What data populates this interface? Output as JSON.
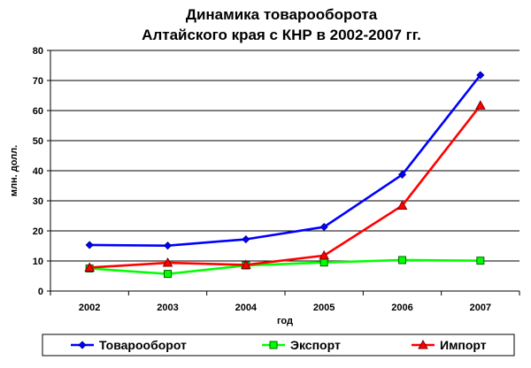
{
  "chart_data": {
    "type": "line",
    "title": [
      "Динамика товарооборота",
      "Алтайского края с КНР в 2002-2007 гг."
    ],
    "xlabel": "год",
    "ylabel": "млн. долл.",
    "categories": [
      "2002",
      "2003",
      "2004",
      "2005",
      "2006",
      "2007"
    ],
    "ylim": [
      0,
      80
    ],
    "yticks": [
      0,
      10,
      20,
      30,
      40,
      50,
      60,
      70,
      80
    ],
    "grid": true,
    "legend_position": "bottom",
    "series": [
      {
        "name": "Товарооборот",
        "color": "#0000ff",
        "marker": "diamond",
        "values": [
          15.3,
          15.1,
          17.2,
          21.3,
          38.7,
          71.8
        ]
      },
      {
        "name": "Экспорт",
        "color": "#00ff00",
        "marker": "square",
        "values": [
          7.5,
          5.7,
          8.5,
          9.5,
          10.3,
          10.1
        ]
      },
      {
        "name": "Импорт",
        "color": "#ff0000",
        "marker": "triangle",
        "values": [
          7.8,
          9.4,
          8.7,
          11.8,
          28.4,
          61.7
        ]
      }
    ]
  }
}
